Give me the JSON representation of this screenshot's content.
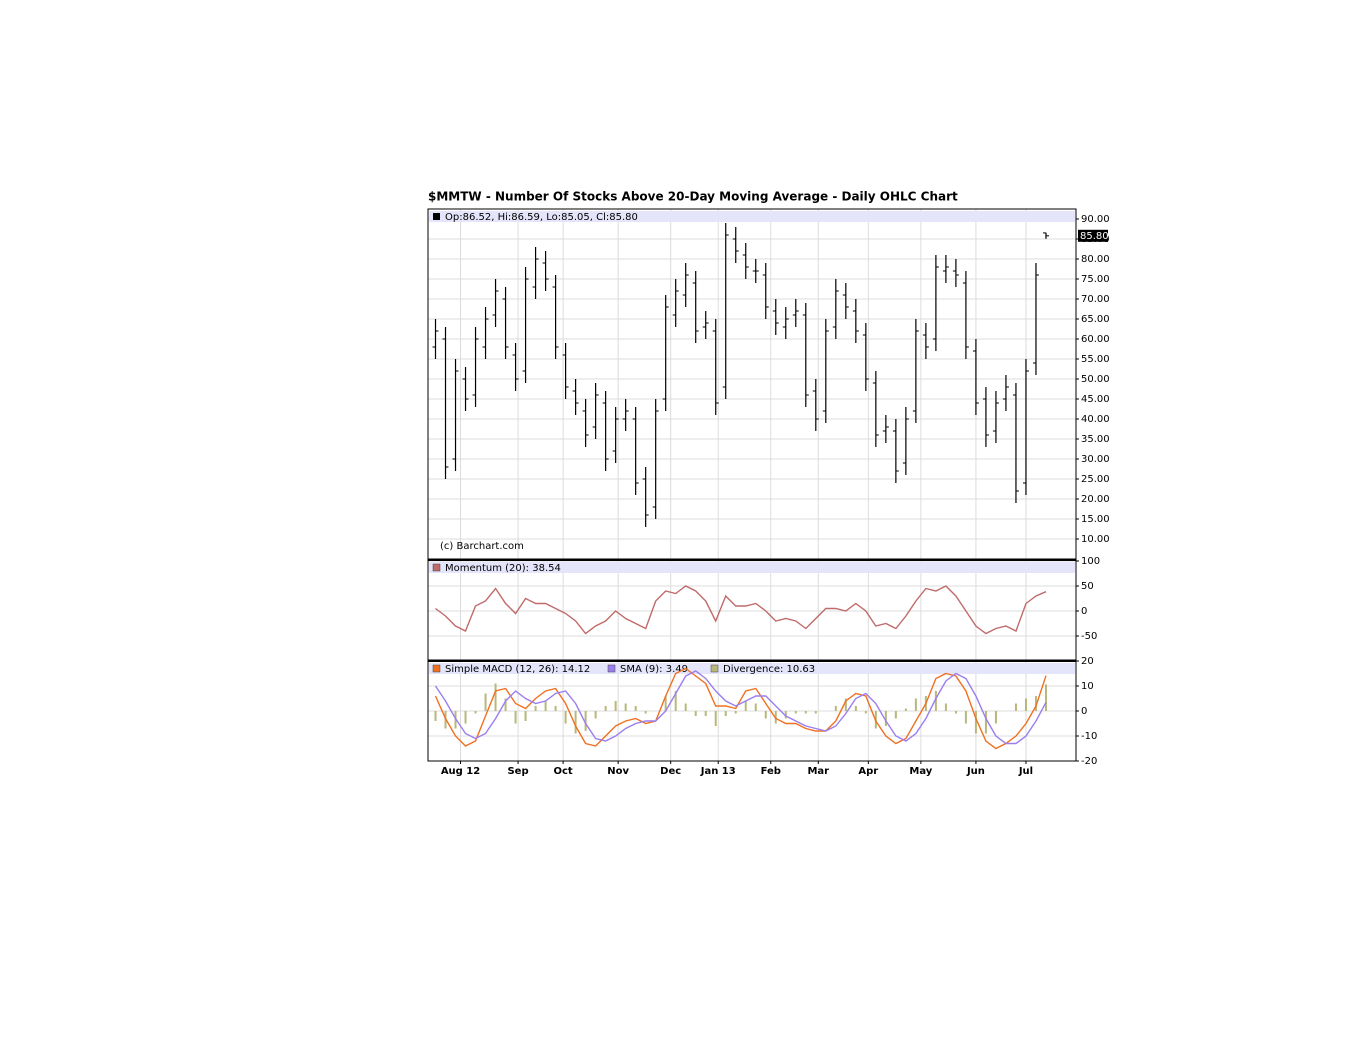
{
  "chart_data": [
    {
      "type": "ohlc",
      "title": "$MMTW - Number Of Stocks Above 20-Day Moving Average - Daily OHLC Chart",
      "legend": "Op:86.52, Hi:86.59, Lo:85.05, Cl:85.80",
      "watermark": "(c) Barchart.com",
      "color": "#000000",
      "x": [
        2,
        6,
        10,
        14,
        18,
        22,
        26,
        30,
        34,
        38,
        42,
        46,
        50,
        54,
        58,
        62,
        66,
        70,
        74,
        78,
        82,
        86,
        90,
        94,
        98,
        102,
        106,
        110,
        114,
        118,
        122,
        126,
        130,
        134,
        138,
        142,
        146,
        150,
        154,
        158,
        162,
        166,
        170,
        174,
        178,
        182,
        186,
        190,
        194,
        198,
        202,
        206,
        210,
        214,
        218,
        222,
        226,
        230,
        234,
        238,
        242,
        246
      ],
      "open": [
        58,
        60,
        30,
        50,
        46,
        58,
        66,
        70,
        56,
        52,
        73,
        79,
        73,
        56,
        47,
        42,
        38,
        44,
        32,
        40,
        40,
        25,
        18,
        45,
        66,
        71,
        74,
        63,
        62,
        48,
        85,
        81,
        77,
        76,
        67,
        63,
        66,
        66,
        47,
        42,
        63,
        71,
        67,
        61,
        49,
        37,
        37,
        29,
        42,
        61,
        60,
        77,
        77,
        74,
        57,
        45,
        37,
        45,
        46,
        24,
        54,
        86.52
      ],
      "high": [
        65,
        63,
        55,
        53,
        63,
        68,
        75,
        73,
        59,
        78,
        83,
        82,
        76,
        59,
        50,
        45,
        49,
        47,
        43,
        45,
        43,
        28,
        45,
        71,
        75,
        79,
        77,
        67,
        65,
        89,
        88,
        84,
        80,
        79,
        70,
        68,
        70,
        69,
        50,
        65,
        75,
        74,
        70,
        64,
        52,
        41,
        40,
        43,
        65,
        64,
        81,
        81,
        80,
        77,
        60,
        48,
        47,
        51,
        49,
        55,
        79,
        86.59
      ],
      "low": [
        55,
        25,
        27,
        42,
        43,
        55,
        63,
        55,
        47,
        49,
        70,
        72,
        55,
        45,
        41,
        33,
        35,
        27,
        29,
        37,
        21,
        13,
        15,
        42,
        63,
        68,
        59,
        60,
        41,
        45,
        79,
        75,
        74,
        65,
        61,
        60,
        63,
        43,
        37,
        39,
        60,
        65,
        59,
        47,
        33,
        34,
        24,
        26,
        39,
        55,
        57,
        74,
        73,
        55,
        41,
        33,
        34,
        42,
        19,
        21,
        51,
        85.05
      ],
      "close": [
        62,
        28,
        52,
        45,
        60,
        65,
        72,
        58,
        50,
        75,
        80,
        75,
        58,
        48,
        44,
        36,
        46,
        30,
        40,
        42,
        24,
        16,
        42,
        68,
        72,
        76,
        62,
        64,
        44,
        86,
        82,
        78,
        77,
        68,
        64,
        65,
        67,
        46,
        40,
        62,
        72,
        68,
        62,
        50,
        36,
        38,
        27,
        40,
        62,
        58,
        78,
        78,
        76,
        58,
        44,
        36,
        44,
        48,
        22,
        52,
        76,
        85.8
      ],
      "last_price": {
        "value": 85.8,
        "label": "85.80"
      },
      "xlim": [
        -1,
        258
      ],
      "ylim": [
        5,
        92.5
      ],
      "yticks": [
        {
          "value": 10,
          "label": "10.00"
        },
        {
          "value": 15,
          "label": "15.00"
        },
        {
          "value": 20,
          "label": "20.00"
        },
        {
          "value": 25,
          "label": "25.00"
        },
        {
          "value": 30,
          "label": "30.00"
        },
        {
          "value": 35,
          "label": "35.00"
        },
        {
          "value": 40,
          "label": "40.00"
        },
        {
          "value": 45,
          "label": "45.00"
        },
        {
          "value": 50,
          "label": "50.00"
        },
        {
          "value": 55,
          "label": "55.00"
        },
        {
          "value": 60,
          "label": "60.00"
        },
        {
          "value": 65,
          "label": "65.00"
        },
        {
          "value": 70,
          "label": "70.00"
        },
        {
          "value": 75,
          "label": "75.00"
        },
        {
          "value": 80,
          "label": "80.00"
        },
        {
          "value": 85,
          "label": "85.00"
        },
        {
          "value": 90,
          "label": "90.00"
        }
      ],
      "grid": true
    },
    {
      "type": "line",
      "x": [
        2,
        6,
        10,
        14,
        18,
        22,
        26,
        30,
        34,
        38,
        42,
        46,
        50,
        54,
        58,
        62,
        66,
        70,
        74,
        78,
        82,
        86,
        90,
        94,
        98,
        102,
        106,
        110,
        114,
        118,
        122,
        126,
        130,
        134,
        138,
        142,
        146,
        150,
        154,
        158,
        162,
        166,
        170,
        174,
        178,
        182,
        186,
        190,
        194,
        198,
        202,
        206,
        210,
        214,
        218,
        222,
        226,
        230,
        234,
        238,
        242,
        246
      ],
      "series": [
        {
          "name": "Momentum (20): 38.54",
          "color": "#c06a6a",
          "type": "line",
          "values": [
            5,
            -10,
            -30,
            -40,
            10,
            20,
            45,
            15,
            -5,
            25,
            15,
            15,
            5,
            -5,
            -20,
            -45,
            -30,
            -20,
            0,
            -15,
            -25,
            -35,
            20,
            40,
            35,
            50,
            40,
            20,
            -20,
            30,
            10,
            10,
            15,
            0,
            -20,
            -15,
            -20,
            -35,
            -15,
            5,
            5,
            0,
            15,
            0,
            -30,
            -25,
            -35,
            -10,
            20,
            45,
            40,
            50,
            30,
            0,
            -30,
            -45,
            -35,
            -30,
            -40,
            15,
            30,
            38.54
          ]
        }
      ],
      "xlim": [
        -1,
        258
      ],
      "ylim": [
        -98,
        102
      ],
      "yticks": [
        -50,
        0,
        50,
        100
      ],
      "grid": true
    },
    {
      "type": "line",
      "x": [
        2,
        6,
        10,
        14,
        18,
        22,
        26,
        30,
        34,
        38,
        42,
        46,
        50,
        54,
        58,
        62,
        66,
        70,
        74,
        78,
        82,
        86,
        90,
        94,
        98,
        102,
        106,
        110,
        114,
        118,
        122,
        126,
        130,
        134,
        138,
        142,
        146,
        150,
        154,
        158,
        162,
        166,
        170,
        174,
        178,
        182,
        186,
        190,
        194,
        198,
        202,
        206,
        210,
        214,
        218,
        222,
        226,
        230,
        234,
        238,
        242,
        246
      ],
      "series": [
        {
          "name": "Simple MACD (12, 26): 14.12",
          "color": "#f07020",
          "type": "line",
          "values": [
            6,
            -3,
            -10,
            -14,
            -12,
            -2,
            8,
            9,
            3,
            1,
            5,
            8,
            9,
            3,
            -6,
            -13,
            -14,
            -10,
            -6,
            -4,
            -3,
            -5,
            -4,
            6,
            15,
            17,
            14,
            11,
            2,
            2,
            1,
            8,
            9,
            3,
            -3,
            -5,
            -5,
            -7,
            -8,
            -8,
            -4,
            4,
            7,
            6,
            -4,
            -10,
            -13,
            -11,
            -4,
            3,
            13,
            15,
            14,
            8,
            -3,
            -12,
            -15,
            -13,
            -10,
            -5,
            2,
            14.12
          ]
        },
        {
          "name": "SMA (9): 3.49",
          "color": "#9a7ef0",
          "type": "line",
          "values": [
            10,
            4,
            -3,
            -9,
            -11,
            -9,
            -3,
            4,
            8,
            5,
            3,
            4,
            7,
            8,
            3,
            -5,
            -11,
            -12,
            -10,
            -7,
            -5,
            -4,
            -4,
            0,
            7,
            14,
            16,
            13,
            8,
            4,
            2,
            4,
            6,
            6,
            2,
            -2,
            -4,
            -6,
            -7,
            -8,
            -6,
            -1,
            5,
            7,
            3,
            -4,
            -10,
            -12,
            -9,
            -3,
            5,
            12,
            15,
            13,
            6,
            -3,
            -10,
            -13,
            -13,
            -10,
            -4,
            3.49
          ]
        },
        {
          "name": "Divergence: 10.63",
          "color": "#b8b87a",
          "type": "bar",
          "values": [
            -4,
            -7,
            -7,
            -5,
            -1,
            7,
            11,
            5,
            -5,
            -4,
            2,
            4,
            2,
            -5,
            -9,
            -8,
            -3,
            2,
            4,
            3,
            2,
            -1,
            0,
            6,
            8,
            3,
            -2,
            -2,
            -6,
            -2,
            -1,
            4,
            3,
            -3,
            -5,
            -3,
            -1,
            -1,
            -1,
            0,
            2,
            5,
            2,
            -1,
            -7,
            -6,
            -3,
            1,
            5,
            6,
            8,
            3,
            -1,
            -5,
            -9,
            -9,
            -5,
            0,
            3,
            5,
            6,
            10.63
          ]
        }
      ],
      "xlim": [
        -1,
        258
      ],
      "ylim": [
        -20,
        20
      ],
      "yticks": [
        -20,
        -10,
        0,
        10,
        20
      ],
      "xticks": [
        {
          "value": 12,
          "label": "Aug 12"
        },
        {
          "value": 35,
          "label": "Sep"
        },
        {
          "value": 53,
          "label": "Oct"
        },
        {
          "value": 75,
          "label": "Nov"
        },
        {
          "value": 96,
          "label": "Dec"
        },
        {
          "value": 115,
          "label": "Jan 13"
        },
        {
          "value": 136,
          "label": "Feb"
        },
        {
          "value": 155,
          "label": "Mar"
        },
        {
          "value": 175,
          "label": "Apr"
        },
        {
          "value": 196,
          "label": "May"
        },
        {
          "value": 218,
          "label": "Jun"
        },
        {
          "value": 238,
          "label": "Jul"
        }
      ],
      "grid": true
    }
  ]
}
